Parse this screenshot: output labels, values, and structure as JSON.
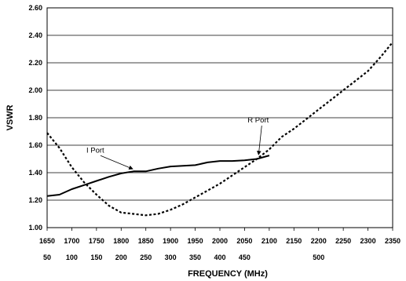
{
  "chart_data": {
    "type": "line",
    "title": "",
    "xlabel": "FREQUENCY (MHz)",
    "ylabel": "VSWR",
    "xlim": [
      1650,
      2350
    ],
    "ylim": [
      1.0,
      2.6
    ],
    "grid": "horizontal",
    "y_ticks": [
      "1.00",
      "1.20",
      "1.40",
      "1.60",
      "1.80",
      "2.00",
      "2.20",
      "2.40",
      "2.60"
    ],
    "x_ticks_primary": [
      "1650",
      "1700",
      "1750",
      "1800",
      "1850",
      "1900",
      "1950",
      "2000",
      "2050",
      "2100",
      "2150",
      "2200",
      "2250",
      "2300",
      "2350"
    ],
    "x_ticks_secondary": [
      {
        "at": 1650,
        "label": "50"
      },
      {
        "at": 1700,
        "label": "100"
      },
      {
        "at": 1750,
        "label": "150"
      },
      {
        "at": 1800,
        "label": "200"
      },
      {
        "at": 1850,
        "label": "250"
      },
      {
        "at": 1900,
        "label": "300"
      },
      {
        "at": 1950,
        "label": "350"
      },
      {
        "at": 2000,
        "label": "400"
      },
      {
        "at": 2050,
        "label": "450"
      },
      {
        "at": 2200,
        "label": "500"
      }
    ],
    "series": [
      {
        "name": "I Port",
        "style": "solid",
        "x": [
          1650,
          1675,
          1700,
          1725,
          1750,
          1775,
          1800,
          1825,
          1850,
          1875,
          1900,
          1925,
          1950,
          1975,
          2000,
          2025,
          2050,
          2075,
          2100
        ],
        "values": [
          1.23,
          1.24,
          1.28,
          1.31,
          1.34,
          1.37,
          1.395,
          1.41,
          1.41,
          1.43,
          1.445,
          1.45,
          1.455,
          1.475,
          1.485,
          1.485,
          1.49,
          1.5,
          1.525
        ]
      },
      {
        "name": "R Port",
        "style": "dotted",
        "x": [
          1650,
          1675,
          1700,
          1725,
          1750,
          1775,
          1800,
          1825,
          1850,
          1875,
          1900,
          1925,
          1950,
          1975,
          2000,
          2025,
          2050,
          2075,
          2100,
          2125,
          2150,
          2175,
          2200,
          2225,
          2250,
          2275,
          2300,
          2325,
          2350
        ],
        "values": [
          1.69,
          1.58,
          1.44,
          1.33,
          1.24,
          1.16,
          1.11,
          1.1,
          1.09,
          1.1,
          1.13,
          1.17,
          1.22,
          1.27,
          1.32,
          1.38,
          1.44,
          1.5,
          1.57,
          1.66,
          1.72,
          1.79,
          1.86,
          1.93,
          2.0,
          2.07,
          2.14,
          2.24,
          2.35
        ]
      }
    ],
    "annotations": [
      {
        "text": "I Port",
        "series": "I Port",
        "point_x": 1825
      },
      {
        "text": "R Port",
        "series": "R Port",
        "point_x": 2080
      }
    ]
  }
}
